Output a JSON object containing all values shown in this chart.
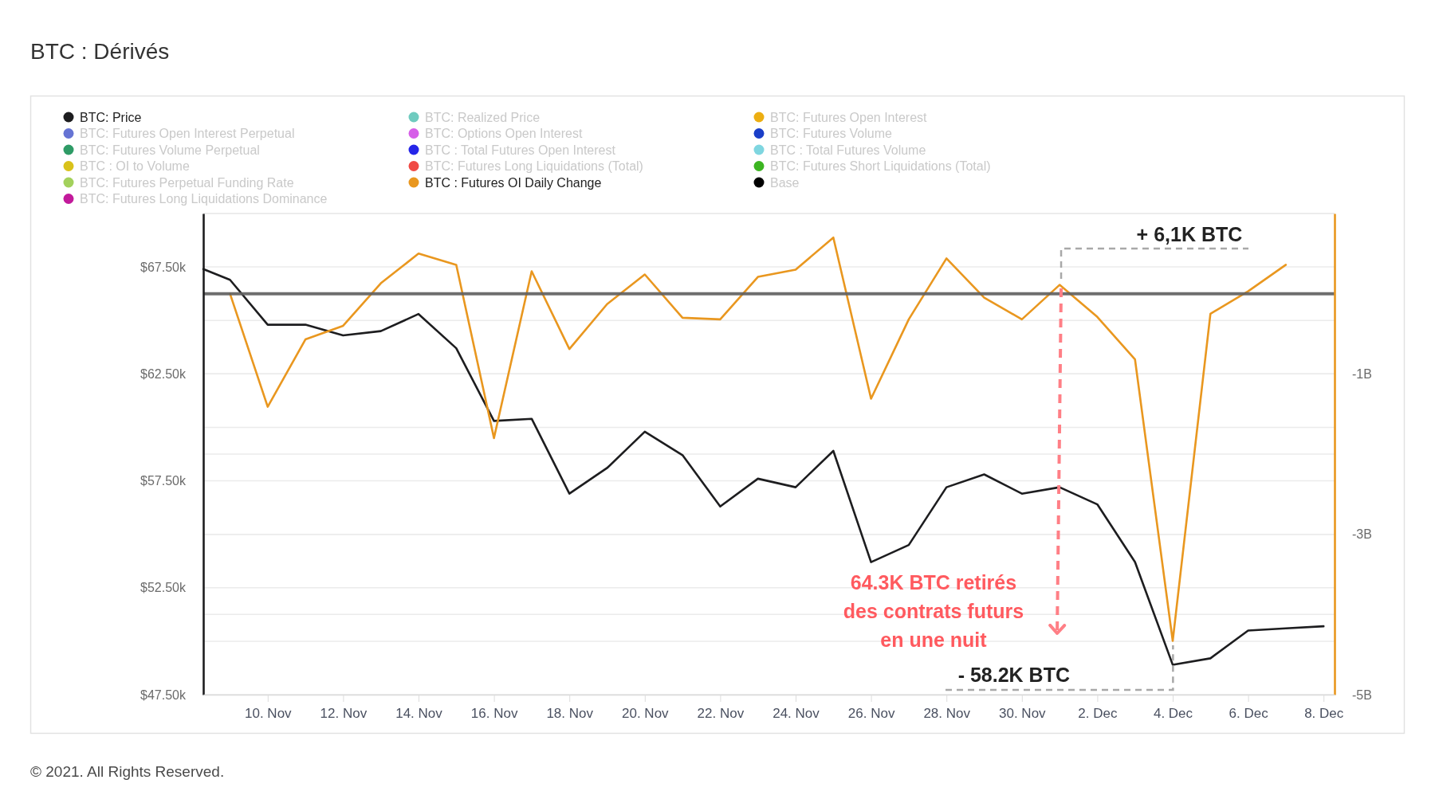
{
  "chart_data": {
    "type": "line",
    "title": "BTC : Dérivés",
    "x": [
      "2021-11-08T07:00",
      "2021-11-09",
      "2021-11-10",
      "2021-11-11",
      "2021-11-12",
      "2021-11-13",
      "2021-11-14",
      "2021-11-15",
      "2021-11-16",
      "2021-11-17",
      "2021-11-18",
      "2021-11-19",
      "2021-11-20",
      "2021-11-21",
      "2021-11-22",
      "2021-11-23",
      "2021-11-24",
      "2021-11-25",
      "2021-11-26",
      "2021-11-27",
      "2021-11-28",
      "2021-11-29",
      "2021-11-30",
      "2021-12-01",
      "2021-12-02",
      "2021-12-03",
      "2021-12-04",
      "2021-12-05",
      "2021-12-06",
      "2021-12-07",
      "2021-12-08"
    ],
    "xlim": [
      "2021-11-08T07:00",
      "2021-12-08T07:00"
    ],
    "xticks": [
      {
        "value": "2021-11-10",
        "label": "10. Nov"
      },
      {
        "value": "2021-11-12",
        "label": "12. Nov"
      },
      {
        "value": "2021-11-14",
        "label": "14. Nov"
      },
      {
        "value": "2021-11-16",
        "label": "16. Nov"
      },
      {
        "value": "2021-11-18",
        "label": "18. Nov"
      },
      {
        "value": "2021-11-20",
        "label": "20. Nov"
      },
      {
        "value": "2021-11-22",
        "label": "22. Nov"
      },
      {
        "value": "2021-11-24",
        "label": "24. Nov"
      },
      {
        "value": "2021-11-26",
        "label": "26. Nov"
      },
      {
        "value": "2021-11-28",
        "label": "28. Nov"
      },
      {
        "value": "2021-11-30",
        "label": "30. Nov"
      },
      {
        "value": "2021-12-02",
        "label": "2. Dec"
      },
      {
        "value": "2021-12-04",
        "label": "4. Dec"
      },
      {
        "value": "2021-12-06",
        "label": "6. Dec"
      },
      {
        "value": "2021-12-08",
        "label": "8. Dec"
      }
    ],
    "ylim": [
      47500,
      70000
    ],
    "yticks": [
      {
        "value": 47500,
        "label": "$47.50k"
      },
      {
        "value": 50000,
        "label": null
      },
      {
        "value": 52500,
        "label": "$52.50k"
      },
      {
        "value": 55000,
        "label": null
      },
      {
        "value": 57500,
        "label": "$57.50k"
      },
      {
        "value": 60000,
        "label": null
      },
      {
        "value": 62500,
        "label": "$62.50k"
      },
      {
        "value": 65000,
        "label": null
      },
      {
        "value": 67500,
        "label": "$67.50k"
      },
      {
        "value": 70000,
        "label": null
      }
    ],
    "y2lim": [
      -5,
      1
    ],
    "y2ticks": [
      {
        "value": -5,
        "label": "-5B"
      },
      {
        "value": -4,
        "label": null
      },
      {
        "value": -3,
        "label": "-3B"
      },
      {
        "value": -2,
        "label": null
      },
      {
        "value": -1,
        "label": "-1B"
      },
      {
        "value": 0,
        "label": null
      },
      {
        "value": 1,
        "label": null
      }
    ],
    "grid": "y",
    "legend": "top",
    "ref_lines": [
      {
        "axis": "y2",
        "value": 0,
        "color": "#606060"
      }
    ],
    "series": [
      {
        "name": "BTC: Price",
        "color": "#1d1d1f",
        "values": [
          67400,
          66900,
          64800,
          64800,
          64300,
          64500,
          65300,
          63700,
          60300,
          60400,
          56900,
          58100,
          59800,
          58700,
          56300,
          57600,
          57200,
          58900,
          53700,
          54500,
          57200,
          57800,
          56900,
          57200,
          56400,
          53700,
          48900,
          49200,
          50500,
          50600,
          50700
        ]
      },
      {
        "name": "BTC: Realized Price",
        "color": "#6fcbbf",
        "values": [
          null,
          null,
          null,
          null,
          null,
          null,
          null,
          null,
          null,
          null,
          null,
          null,
          null,
          null,
          null,
          null,
          null,
          null,
          null,
          null,
          null,
          null,
          null,
          null,
          null,
          null,
          null,
          null,
          null,
          null,
          null
        ]
      },
      {
        "name": "BTC: Futures Open Interest",
        "color": "#ecae12",
        "values": [
          null,
          null,
          null,
          null,
          null,
          null,
          null,
          null,
          null,
          null,
          null,
          null,
          null,
          null,
          null,
          null,
          null,
          null,
          null,
          null,
          null,
          null,
          null,
          null,
          null,
          null,
          null,
          null,
          null,
          null,
          null
        ]
      },
      {
        "name": "BTC: Futures Open Interest Perpetual",
        "color": "#6674d4",
        "values": [
          null,
          null,
          null,
          null,
          null,
          null,
          null,
          null,
          null,
          null,
          null,
          null,
          null,
          null,
          null,
          null,
          null,
          null,
          null,
          null,
          null,
          null,
          null,
          null,
          null,
          null,
          null,
          null,
          null,
          null,
          null
        ]
      },
      {
        "name": "BTC: Options Open Interest",
        "color": "#d65ee8",
        "values": [
          null,
          null,
          null,
          null,
          null,
          null,
          null,
          null,
          null,
          null,
          null,
          null,
          null,
          null,
          null,
          null,
          null,
          null,
          null,
          null,
          null,
          null,
          null,
          null,
          null,
          null,
          null,
          null,
          null,
          null,
          null
        ]
      },
      {
        "name": "BTC: Futures Volume",
        "color": "#1a3ec8",
        "values": [
          null,
          null,
          null,
          null,
          null,
          null,
          null,
          null,
          null,
          null,
          null,
          null,
          null,
          null,
          null,
          null,
          null,
          null,
          null,
          null,
          null,
          null,
          null,
          null,
          null,
          null,
          null,
          null,
          null,
          null,
          null
        ]
      },
      {
        "name": "BTC: Futures Volume Perpetual",
        "color": "#2e9b66",
        "values": [
          null,
          null,
          null,
          null,
          null,
          null,
          null,
          null,
          null,
          null,
          null,
          null,
          null,
          null,
          null,
          null,
          null,
          null,
          null,
          null,
          null,
          null,
          null,
          null,
          null,
          null,
          null,
          null,
          null,
          null,
          null
        ]
      },
      {
        "name": "BTC : Total Futures Open Interest",
        "color": "#2525e8",
        "values": [
          null,
          null,
          null,
          null,
          null,
          null,
          null,
          null,
          null,
          null,
          null,
          null,
          null,
          null,
          null,
          null,
          null,
          null,
          null,
          null,
          null,
          null,
          null,
          null,
          null,
          null,
          null,
          null,
          null,
          null,
          null
        ]
      },
      {
        "name": "BTC : Total Futures Volume",
        "color": "#7fd6e0",
        "values": [
          null,
          null,
          null,
          null,
          null,
          null,
          null,
          null,
          null,
          null,
          null,
          null,
          null,
          null,
          null,
          null,
          null,
          null,
          null,
          null,
          null,
          null,
          null,
          null,
          null,
          null,
          null,
          null,
          null,
          null,
          null
        ]
      },
      {
        "name": "BTC : OI to Volume",
        "color": "#d9c21a",
        "values": [
          null,
          null,
          null,
          null,
          null,
          null,
          null,
          null,
          null,
          null,
          null,
          null,
          null,
          null,
          null,
          null,
          null,
          null,
          null,
          null,
          null,
          null,
          null,
          null,
          null,
          null,
          null,
          null,
          null,
          null,
          null
        ]
      },
      {
        "name": "BTC: Futures Long Liquidations (Total)",
        "color": "#f04a44",
        "values": [
          null,
          null,
          null,
          null,
          null,
          null,
          null,
          null,
          null,
          null,
          null,
          null,
          null,
          null,
          null,
          null,
          null,
          null,
          null,
          null,
          null,
          null,
          null,
          null,
          null,
          null,
          null,
          null,
          null,
          null,
          null
        ]
      },
      {
        "name": "BTC: Futures Short Liquidations (Total)",
        "color": "#3cb521",
        "values": [
          null,
          null,
          null,
          null,
          null,
          null,
          null,
          null,
          null,
          null,
          null,
          null,
          null,
          null,
          null,
          null,
          null,
          null,
          null,
          null,
          null,
          null,
          null,
          null,
          null,
          null,
          null,
          null,
          null,
          null,
          null
        ]
      },
      {
        "name": "BTC: Futures Perpetual Funding Rate",
        "color": "#a3d15c",
        "values": [
          null,
          null,
          null,
          null,
          null,
          null,
          null,
          null,
          null,
          null,
          null,
          null,
          null,
          null,
          null,
          null,
          null,
          null,
          null,
          null,
          null,
          null,
          null,
          null,
          null,
          null,
          null,
          null,
          null,
          null,
          null
        ]
      },
      {
        "name": "BTC : Futures OI Daily Change",
        "color": "#e9971f",
        "axis": "y2",
        "values": [
          null,
          0,
          -1.41,
          -0.57,
          -0.4,
          0.13,
          0.5,
          0.36,
          -1.8,
          0.28,
          -0.69,
          -0.13,
          0.24,
          -0.3,
          -0.32,
          0.21,
          0.3,
          0.7,
          -1.31,
          -0.32,
          0.44,
          -0.05,
          -0.32,
          0.11,
          -0.29,
          -0.82,
          -4.33,
          -0.25,
          0.03,
          0.36,
          null
        ]
      },
      {
        "name": "Base",
        "color": "#000000",
        "values": [
          null,
          null,
          null,
          null,
          null,
          null,
          null,
          null,
          null,
          null,
          null,
          null,
          null,
          null,
          null,
          null,
          null,
          null,
          null,
          null,
          null,
          null,
          null,
          null,
          null,
          null,
          null,
          null,
          null,
          null,
          null
        ]
      },
      {
        "name": "BTC: Futures Long Liquidations Dominance",
        "color": "#c21a9b",
        "values": [
          null,
          null,
          null,
          null,
          null,
          null,
          null,
          null,
          null,
          null,
          null,
          null,
          null,
          null,
          null,
          null,
          null,
          null,
          null,
          null,
          null,
          null,
          null,
          null,
          null,
          null,
          null,
          null,
          null,
          null,
          null
        ]
      }
    ],
    "annotations": [
      "+ 6,1K BTC",
      "64.3K BTC retirés des contrats futurs en une nuit",
      "- 58.2K BTC",
      "© 2021. All Rights Reserved."
    ]
  }
}
